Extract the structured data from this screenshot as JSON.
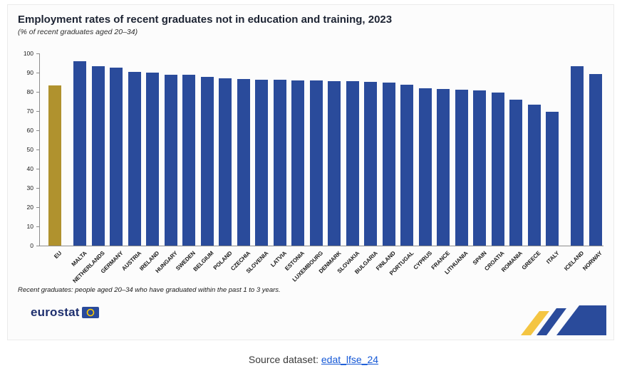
{
  "title": "Employment rates of recent graduates not in education and training, 2023",
  "subtitle": "(% of recent graduates aged 20–34)",
  "footnote": "Recent graduates: people aged 20–34 who have graduated within the past 1 to 3 years.",
  "logo": {
    "text": "eurostat"
  },
  "source": {
    "label": "Source dataset: ",
    "link_text": "edat_lfse_24"
  },
  "colors": {
    "eu_bar": "#b0922e",
    "country_bar": "#2a4b9b",
    "ribbon_yellow": "#f4c542",
    "ribbon_blue": "#2a4b9b",
    "link_blue": "#1558d6"
  },
  "chart_data": {
    "type": "bar",
    "title": "Employment rates of recent graduates not in education and training, 2023",
    "subtitle": "(% of recent graduates aged 20–34)",
    "ylabel": "",
    "xlabel": "",
    "ylim": [
      0,
      100
    ],
    "yticks": [
      0,
      10,
      20,
      30,
      40,
      50,
      60,
      70,
      80,
      90,
      100
    ],
    "grid": false,
    "legend": "none",
    "groups": [
      {
        "name": "eu-aggregate",
        "color": "#b0922e",
        "bars": [
          {
            "label": "EU",
            "value": 83.5
          }
        ]
      },
      {
        "name": "eu-countries",
        "color": "#2a4b9b",
        "bars": [
          {
            "label": "MALTA",
            "value": 95.8
          },
          {
            "label": "NETHERLANDS",
            "value": 93.4
          },
          {
            "label": "GERMANY",
            "value": 92.5
          },
          {
            "label": "AUSTRIA",
            "value": 90.2
          },
          {
            "label": "IRELAND",
            "value": 90.0
          },
          {
            "label": "HUNGARY",
            "value": 89.0
          },
          {
            "label": "SWEDEN",
            "value": 88.8
          },
          {
            "label": "BELGIUM",
            "value": 87.6
          },
          {
            "label": "POLAND",
            "value": 87.0
          },
          {
            "label": "CZECHIA",
            "value": 86.6
          },
          {
            "label": "SLOVENIA",
            "value": 86.4
          },
          {
            "label": "LATVIA",
            "value": 86.2
          },
          {
            "label": "ESTONIA",
            "value": 86.0
          },
          {
            "label": "LUXEMBOURG",
            "value": 85.8
          },
          {
            "label": "DENMARK",
            "value": 85.6
          },
          {
            "label": "SLOVAKIA",
            "value": 85.5
          },
          {
            "label": "BULGARIA",
            "value": 85.3
          },
          {
            "label": "FINLAND",
            "value": 85.0
          },
          {
            "label": "PORTUGAL",
            "value": 83.6
          },
          {
            "label": "CYPRUS",
            "value": 82.0
          },
          {
            "label": "FRANCE",
            "value": 81.6
          },
          {
            "label": "LITHUANIA",
            "value": 81.3
          },
          {
            "label": "SPAIN",
            "value": 80.6
          },
          {
            "label": "CROATIA",
            "value": 79.5
          },
          {
            "label": "ROMANIA",
            "value": 76.0
          },
          {
            "label": "GREECE",
            "value": 73.5
          },
          {
            "label": "ITALY",
            "value": 69.5
          }
        ]
      },
      {
        "name": "efta-countries",
        "color": "#2a4b9b",
        "bars": [
          {
            "label": "ICELAND",
            "value": 93.5
          },
          {
            "label": "NORWAY",
            "value": 89.4
          }
        ]
      }
    ]
  }
}
